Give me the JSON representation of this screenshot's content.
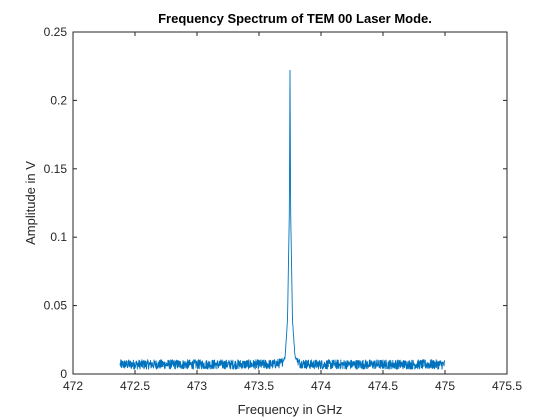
{
  "chart_data": {
    "type": "line",
    "title": "Frequency Spectrum of TEM 00 Laser Mode.",
    "xlabel": "Frequency in GHz",
    "ylabel": "Amplitude in V",
    "xlim": [
      472,
      475.5
    ],
    "ylim": [
      0,
      0.25
    ],
    "x_ticks": [
      "472",
      "472.5",
      "473",
      "473.5",
      "474",
      "474.5",
      "475",
      "475.5"
    ],
    "y_ticks": [
      "0",
      "0.05",
      "0.1",
      "0.15",
      "0.2",
      "0.25"
    ],
    "grid": false,
    "legend": "none",
    "series": [
      {
        "color": "#0072BD",
        "x_range": [
          472.38,
          475.0
        ],
        "noise_floor": 0.007,
        "noise_amplitude": 0.0035,
        "peak": {
          "x": 473.75,
          "y": 0.222
        },
        "x": [
          472.38,
          473.6,
          473.68,
          473.71,
          473.73,
          473.745,
          473.75,
          473.755,
          473.77,
          473.79,
          473.82,
          473.9,
          475.0
        ],
        "y": [
          0.007,
          0.007,
          0.008,
          0.012,
          0.04,
          0.12,
          0.222,
          0.12,
          0.04,
          0.013,
          0.008,
          0.007,
          0.007
        ]
      }
    ]
  }
}
